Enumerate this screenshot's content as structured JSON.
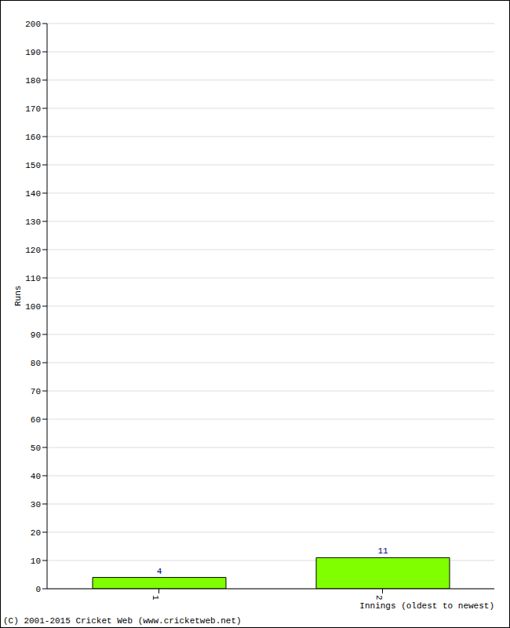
{
  "chart_data": {
    "type": "bar",
    "categories": [
      "1",
      "2"
    ],
    "values": [
      4,
      11
    ],
    "color": "#80ff00",
    "ylim": [
      0,
      200
    ],
    "yticks": [
      0,
      10,
      20,
      30,
      40,
      50,
      60,
      70,
      80,
      90,
      100,
      110,
      120,
      130,
      140,
      150,
      160,
      170,
      180,
      190,
      200
    ],
    "grid": true,
    "data_labels": true,
    "x_label": "Innings (oldest to newest)",
    "y_label": "Runs",
    "annotations": [
      "(C) 2001-2015 Cricket Web (www.cricketweb.net)"
    ]
  }
}
